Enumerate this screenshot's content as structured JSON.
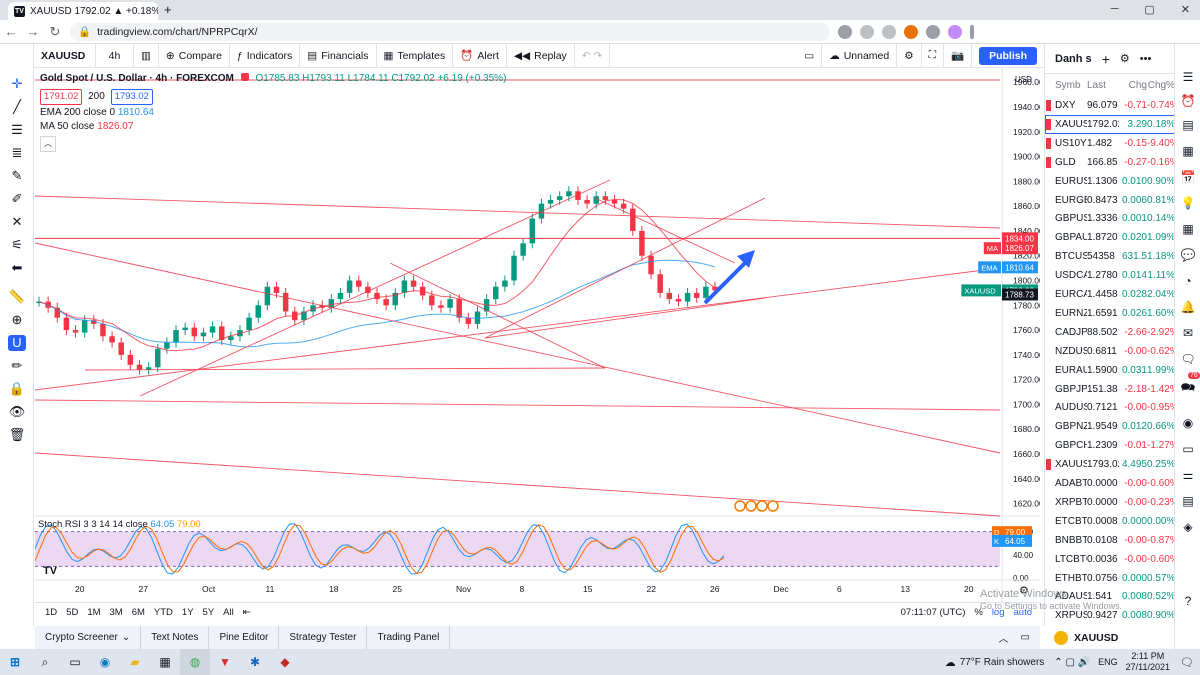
{
  "browser": {
    "tab_title": "XAUUSD 1792.02 ▲ +0.18% Unn",
    "url": "tradingview.com/chart/NPRPCqrX/"
  },
  "toolbar": {
    "symbol": "XAUUSD",
    "interval": "4h",
    "compare": "Compare",
    "indicators": "Indicators",
    "financials": "Financials",
    "templates": "Templates",
    "alert": "Alert",
    "replay": "Replay",
    "layout_name": "Unnamed",
    "publish": "Publish"
  },
  "legend": {
    "title": "Gold Spot / U.S. Dollar · 4h · FOREXCOM",
    "ohlc": "O1785.83 H1793.11 L1784.11 C1792.02 +6.19 (+0.35%)",
    "bid": "1791.02",
    "spread": "200",
    "ask": "1793.02",
    "ema_label": "EMA 200 close 0",
    "ema_value": "1810.64",
    "ma_label": "MA 50 close",
    "ma_value": "1826.07"
  },
  "price_axis": {
    "currency": "USD",
    "ticks": [
      "1960.00",
      "1940.00",
      "1920.00",
      "1900.00",
      "1880.00",
      "1860.00",
      "1840.00",
      "1820.00",
      "1800.00",
      "1780.00",
      "1760.00",
      "1740.00",
      "1720.00",
      "1700.00",
      "1680.00",
      "1660.00",
      "1640.00",
      "1620.00"
    ],
    "badges": [
      {
        "label": "",
        "value": "1834.00",
        "color": "#f23645"
      },
      {
        "label": "MA",
        "value": "1826.07",
        "color": "#f23645"
      },
      {
        "label": "EMA",
        "value": "1810.64",
        "color": "#2196f3"
      },
      {
        "label": "XAUUSD",
        "value": "1792.02",
        "color": "#089981"
      },
      {
        "label": "",
        "value": "1788.73",
        "color": "#131722"
      }
    ]
  },
  "stoch": {
    "label": "Stoch RSI 3 3 14 14 close",
    "k": "64.05",
    "d": "79.00",
    "ticks": [
      "80.00",
      "40.00",
      "0.00"
    ],
    "d_tag": "D",
    "k_tag": "K"
  },
  "time_axis": [
    "20",
    "27",
    "Oct",
    "11",
    "18",
    "25",
    "Nov",
    "8",
    "15",
    "22",
    "26",
    "Dec",
    "6",
    "13",
    "20"
  ],
  "timebar": {
    "ranges": [
      "1D",
      "5D",
      "1M",
      "3M",
      "6M",
      "YTD",
      "1Y",
      "5Y",
      "All"
    ],
    "clock": "07:11:07 (UTC)",
    "pct": "%",
    "log": "log",
    "auto": "auto",
    "watermark": "Activate Windows",
    "watermark_sub": "Go to Settings to activate Windows."
  },
  "bottom_tabs": [
    "Crypto Screener",
    "Text Notes",
    "Pine Editor",
    "Strategy Tester",
    "Trading Panel"
  ],
  "watchlist": {
    "title": "Danh s",
    "headers": [
      "Symb",
      "Last",
      "Chg",
      "Chg%"
    ],
    "rows": [
      {
        "sym": "DXY",
        "last": "96.079",
        "chg": "-0.71",
        "pct": "-0.74%",
        "dir": "dn",
        "flag": "#f23645"
      },
      {
        "sym": "XAUUSD",
        "last": "1792.02",
        "chg": "3.29",
        "pct": "0.18%",
        "dir": "up",
        "flag": "#f23645"
      },
      {
        "sym": "US10Y",
        "last": "1.482",
        "chg": "-0.15",
        "pct": "-9.40%",
        "dir": "dn",
        "flag": "#f23645"
      },
      {
        "sym": "GLD",
        "last": "166.85",
        "chg": "-0.27",
        "pct": "-0.16%",
        "dir": "dn",
        "flag": "#f23645"
      },
      {
        "sym": "EURUSD",
        "last": "1.1306",
        "chg": "0.010",
        "pct": "0.90%",
        "dir": "up",
        "flag": ""
      },
      {
        "sym": "EURGBP",
        "last": "0.8473",
        "chg": "0.006",
        "pct": "0.81%",
        "dir": "up",
        "flag": ""
      },
      {
        "sym": "GBPUSD",
        "last": "1.3336",
        "chg": "0.001",
        "pct": "0.14%",
        "dir": "up",
        "flag": ""
      },
      {
        "sym": "GBPAUD",
        "last": "1.8720",
        "chg": "0.020",
        "pct": "1.09%",
        "dir": "up",
        "flag": ""
      },
      {
        "sym": "BTCUSD",
        "last": "54358",
        "chg": "631.5",
        "pct": "1.18%",
        "dir": "up",
        "flag": ""
      },
      {
        "sym": "USDCAD",
        "last": "1.2780",
        "chg": "0.014",
        "pct": "1.11%",
        "dir": "up",
        "flag": ""
      },
      {
        "sym": "EURCAD",
        "last": "1.4458",
        "chg": "0.028",
        "pct": "2.04%",
        "dir": "up",
        "flag": ""
      },
      {
        "sym": "EURNZD",
        "last": "1.6591",
        "chg": "0.026",
        "pct": "1.60%",
        "dir": "up",
        "flag": ""
      },
      {
        "sym": "CADJPY",
        "last": "88.502",
        "chg": "-2.66",
        "pct": "-2.92%",
        "dir": "dn",
        "flag": ""
      },
      {
        "sym": "NZDUSD",
        "last": "0.6811",
        "chg": "-0.00",
        "pct": "-0.62%",
        "dir": "dn",
        "flag": ""
      },
      {
        "sym": "EURAUD",
        "last": "1.5900",
        "chg": "0.031",
        "pct": "1.99%",
        "dir": "up",
        "flag": ""
      },
      {
        "sym": "GBPJPY",
        "last": "151.38",
        "chg": "-2.18",
        "pct": "-1.42%",
        "dir": "dn",
        "flag": ""
      },
      {
        "sym": "AUDUSD",
        "last": "0.7121",
        "chg": "-0.00",
        "pct": "-0.95%",
        "dir": "dn",
        "flag": ""
      },
      {
        "sym": "GBPNZD",
        "last": "1.9549",
        "chg": "0.012",
        "pct": "0.66%",
        "dir": "up",
        "flag": ""
      },
      {
        "sym": "GBPCHF",
        "last": "1.2309",
        "chg": "-0.01",
        "pct": "-1.27%",
        "dir": "dn",
        "flag": ""
      },
      {
        "sym": "XAUUSD",
        "last": "1793.02",
        "chg": "4.495",
        "pct": "0.25%",
        "dir": "up",
        "flag": "#f23645"
      },
      {
        "sym": "ADABTC",
        "last": "0.0000",
        "chg": "-0.00",
        "pct": "-0.60%",
        "dir": "dn",
        "flag": ""
      },
      {
        "sym": "XRPBTC",
        "last": "0.0000",
        "chg": "-0.00",
        "pct": "-0.23%",
        "dir": "dn",
        "flag": ""
      },
      {
        "sym": "ETCBTC",
        "last": "0.0008",
        "chg": "0.000",
        "pct": "0.00%",
        "dir": "up",
        "flag": ""
      },
      {
        "sym": "BNBBTC",
        "last": "0.0108",
        "chg": "-0.00",
        "pct": "-0.87%",
        "dir": "dn",
        "flag": ""
      },
      {
        "sym": "LTCBTC",
        "last": "0.0036",
        "chg": "-0.00",
        "pct": "-0.60%",
        "dir": "dn",
        "flag": ""
      },
      {
        "sym": "ETHBTC",
        "last": "0.0756",
        "chg": "0.000",
        "pct": "0.57%",
        "dir": "up",
        "flag": ""
      },
      {
        "sym": "ADAUSD",
        "last": "1.541",
        "chg": "0.008",
        "pct": "0.52%",
        "dir": "up",
        "flag": ""
      },
      {
        "sym": "XRPUSD",
        "last": "0.9427",
        "chg": "0.008",
        "pct": "0.90%",
        "dir": "up",
        "flag": ""
      }
    ],
    "footer_symbol": "XAUUSD"
  },
  "taskbar": {
    "weather": "77°F  Rain showers",
    "time": "2:11 PM",
    "date": "27/11/2021",
    "lang": "ENG"
  },
  "notification_badge": "76",
  "tab_badge": "11",
  "chart_data": {
    "type": "candlestick",
    "title": "Gold Spot / U.S. Dollar · 4h · FOREXCOM",
    "ylim": [
      1610,
      1965
    ],
    "x_labels": [
      "20",
      "27",
      "Oct",
      "11",
      "18",
      "25",
      "Nov",
      "8",
      "15",
      "22",
      "26",
      "Dec",
      "6",
      "13",
      "20"
    ],
    "close_path": [
      1783,
      1778,
      1770,
      1760,
      1758,
      1768,
      1765,
      1755,
      1750,
      1740,
      1732,
      1728,
      1730,
      1745,
      1750,
      1760,
      1762,
      1755,
      1758,
      1763,
      1752,
      1755,
      1760,
      1770,
      1780,
      1795,
      1790,
      1775,
      1768,
      1775,
      1780,
      1778,
      1785,
      1790,
      1800,
      1795,
      1790,
      1785,
      1780,
      1790,
      1800,
      1795,
      1788,
      1780,
      1778,
      1785,
      1770,
      1765,
      1775,
      1785,
      1795,
      1800,
      1820,
      1830,
      1850,
      1862,
      1865,
      1868,
      1872,
      1865,
      1862,
      1868,
      1865,
      1862,
      1858,
      1840,
      1820,
      1805,
      1790,
      1785,
      1783,
      1790,
      1786,
      1795,
      1792
    ],
    "series": [
      {
        "name": "EMA 200 close 0",
        "last": 1810.64,
        "color": "#2196f3"
      },
      {
        "name": "MA 50 close",
        "last": 1826.07,
        "color": "#f23645"
      }
    ],
    "stoch_rsi": {
      "k": 64.05,
      "d": 79.0,
      "band": [
        20,
        80
      ]
    }
  }
}
